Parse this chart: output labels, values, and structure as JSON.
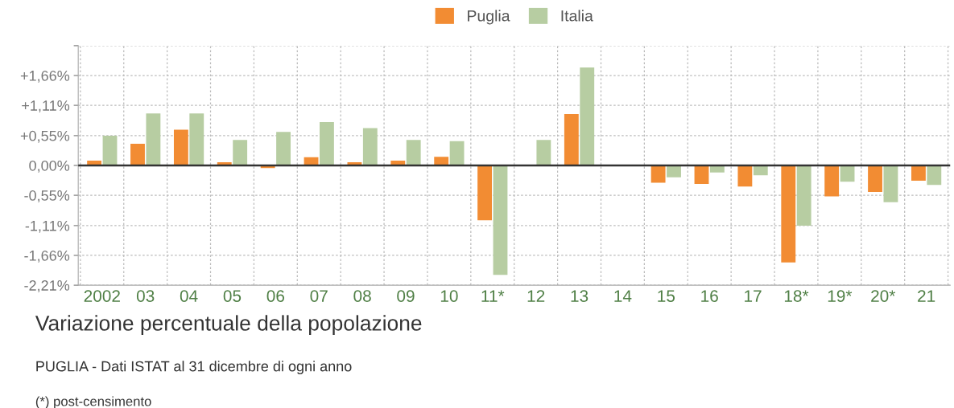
{
  "chart_data": {
    "type": "bar",
    "title": "Variazione percentuale della popolazione",
    "subtitle": "PUGLIA - Dati ISTAT al 31 dicembre di ogni anno",
    "annotations": [
      "(*) post-censimento"
    ],
    "categories": [
      "2002",
      "03",
      "04",
      "05",
      "06",
      "07",
      "08",
      "09",
      "10",
      "11*",
      "12",
      "13",
      "14",
      "15",
      "16",
      "17",
      "18*",
      "19*",
      "20*",
      "21"
    ],
    "series": [
      {
        "name": "Puglia",
        "color": "#f28c33",
        "values": [
          0.09,
          0.4,
          0.66,
          0.06,
          -0.05,
          0.15,
          0.06,
          0.09,
          0.16,
          -1.01,
          0,
          0.95,
          0,
          -0.32,
          -0.34,
          -0.39,
          -1.79,
          -0.57,
          -0.49,
          -0.28
        ]
      },
      {
        "name": "Italia",
        "color": "#b7cda2",
        "values": [
          0.55,
          0.96,
          0.96,
          0.47,
          0.62,
          0.8,
          0.69,
          0.47,
          0.45,
          -2.02,
          0.47,
          1.81,
          0,
          -0.22,
          -0.13,
          -0.18,
          -1.11,
          -0.3,
          -0.68,
          -0.36
        ]
      }
    ],
    "ylim": [
      -2.21,
      2.21
    ],
    "yticks": [
      {
        "value": 2.21,
        "label": null
      },
      {
        "value": 1.66,
        "label": "+1,66%"
      },
      {
        "value": 1.11,
        "label": "+1,11%"
      },
      {
        "value": 0.55,
        "label": "+0,55%"
      },
      {
        "value": 0,
        "label": "0,00%"
      },
      {
        "value": -0.55,
        "label": "-0,55%"
      },
      {
        "value": -1.11,
        "label": "-1,11%"
      },
      {
        "value": -1.66,
        "label": "-1,66%"
      },
      {
        "value": -2.21,
        "label": "-2,21%"
      }
    ],
    "ref_lines": [
      {
        "axis": "y",
        "value": 0,
        "label": null,
        "color": "#333333"
      }
    ],
    "grid": true,
    "legend": "top"
  }
}
